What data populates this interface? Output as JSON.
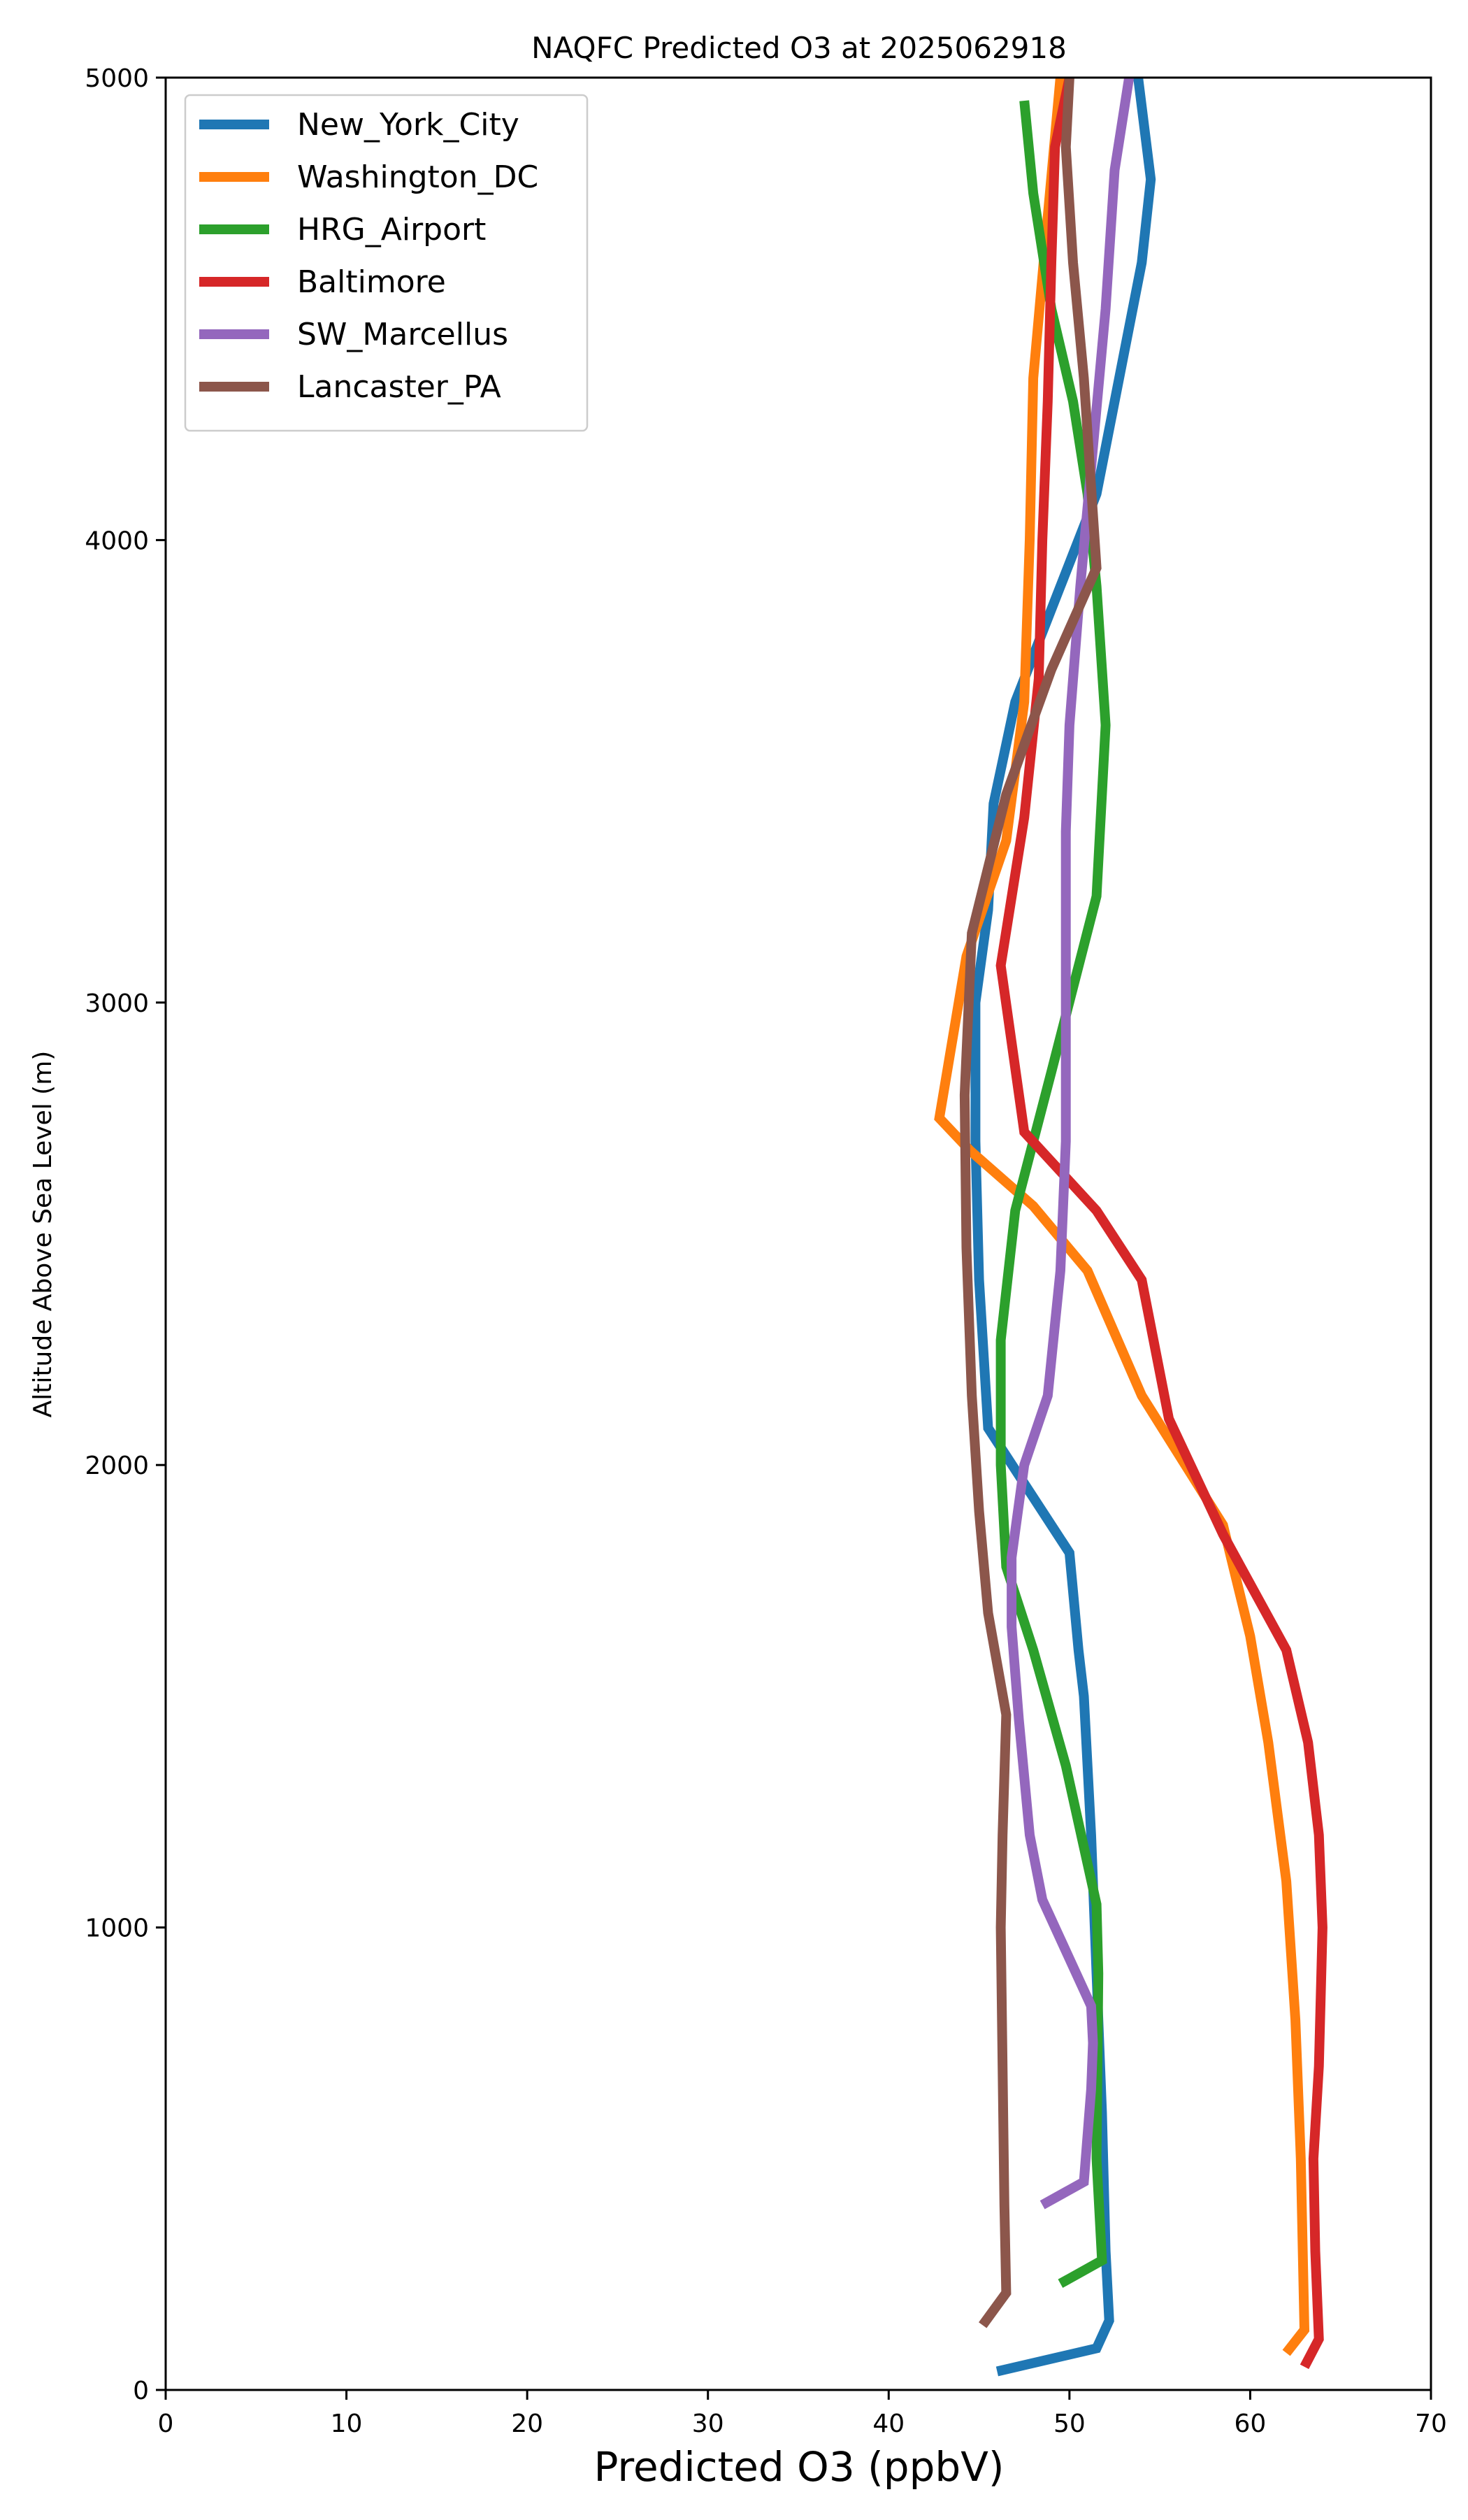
{
  "chart_data": {
    "type": "line",
    "title": "NAQFC Predicted O3 at 2025062918",
    "xlabel": "Predicted O3 (ppbV)",
    "ylabel": "Altitude Above Sea Level (m)",
    "xlim": [
      0,
      70
    ],
    "ylim": [
      0,
      5000
    ],
    "xticks": [
      0,
      10,
      20,
      30,
      40,
      50,
      60,
      70
    ],
    "yticks": [
      0,
      1000,
      2000,
      3000,
      4000,
      5000
    ],
    "grid": false,
    "legend": "upper-left",
    "series": [
      {
        "name": "New_York_City",
        "color": "#1f77b4",
        "points": [
          [
            46.0,
            40
          ],
          [
            51.5,
            90
          ],
          [
            52.2,
            150
          ],
          [
            52.0,
            300
          ],
          [
            51.8,
            600
          ],
          [
            51.5,
            900
          ],
          [
            51.2,
            1200
          ],
          [
            50.8,
            1500
          ],
          [
            50.5,
            1600
          ],
          [
            50.0,
            1810
          ],
          [
            47.5,
            1960
          ],
          [
            45.5,
            2080
          ],
          [
            45.0,
            2400
          ],
          [
            44.8,
            2700
          ],
          [
            44.8,
            3000
          ],
          [
            45.5,
            3200
          ],
          [
            45.8,
            3430
          ],
          [
            47.0,
            3650
          ],
          [
            49.5,
            3900
          ],
          [
            51.5,
            4100
          ],
          [
            52.5,
            4300
          ],
          [
            54.0,
            4600
          ],
          [
            54.5,
            4780
          ],
          [
            53.8,
            5000
          ]
        ]
      },
      {
        "name": "Washington_DC",
        "color": "#ff7f0e",
        "points": [
          [
            62.0,
            80
          ],
          [
            63.0,
            130
          ],
          [
            62.8,
            500
          ],
          [
            62.5,
            800
          ],
          [
            62.0,
            1100
          ],
          [
            61.0,
            1400
          ],
          [
            60.0,
            1630
          ],
          [
            58.5,
            1870
          ],
          [
            54.0,
            2150
          ],
          [
            51.0,
            2420
          ],
          [
            48.0,
            2560
          ],
          [
            44.5,
            2680
          ],
          [
            42.8,
            2750
          ],
          [
            44.3,
            3100
          ],
          [
            46.5,
            3350
          ],
          [
            47.5,
            3650
          ],
          [
            47.8,
            4000
          ],
          [
            48.0,
            4350
          ],
          [
            48.8,
            4700
          ],
          [
            49.5,
            5000
          ]
        ]
      },
      {
        "name": "HRG_Airport",
        "color": "#2ca02c",
        "points": [
          [
            49.5,
            230
          ],
          [
            51.8,
            280
          ],
          [
            51.5,
            500
          ],
          [
            51.6,
            900
          ],
          [
            51.5,
            1050
          ],
          [
            49.8,
            1350
          ],
          [
            48.0,
            1600
          ],
          [
            46.5,
            1780
          ],
          [
            46.2,
            2000
          ],
          [
            46.2,
            2270
          ],
          [
            47.0,
            2550
          ],
          [
            49.0,
            2850
          ],
          [
            51.5,
            3230
          ],
          [
            52.0,
            3600
          ],
          [
            51.5,
            3900
          ],
          [
            51.0,
            4100
          ],
          [
            50.2,
            4300
          ],
          [
            49.0,
            4500
          ],
          [
            48.0,
            4750
          ],
          [
            47.5,
            4950
          ]
        ]
      },
      {
        "name": "Baltimore",
        "color": "#d62728",
        "points": [
          [
            63.0,
            50
          ],
          [
            63.8,
            110
          ],
          [
            63.6,
            300
          ],
          [
            63.5,
            500
          ],
          [
            63.8,
            700
          ],
          [
            64.0,
            1000
          ],
          [
            63.8,
            1200
          ],
          [
            63.2,
            1400
          ],
          [
            62.0,
            1600
          ],
          [
            58.5,
            1850
          ],
          [
            55.5,
            2100
          ],
          [
            54.0,
            2400
          ],
          [
            51.5,
            2550
          ],
          [
            47.5,
            2720
          ],
          [
            46.2,
            3080
          ],
          [
            47.5,
            3400
          ],
          [
            48.3,
            3700
          ],
          [
            48.5,
            4000
          ],
          [
            48.8,
            4300
          ],
          [
            49.0,
            4600
          ],
          [
            49.2,
            4850
          ],
          [
            50.0,
            5000
          ]
        ]
      },
      {
        "name": "SW_Marcellus",
        "color": "#9467bd",
        "points": [
          [
            48.5,
            400
          ],
          [
            50.8,
            450
          ],
          [
            51.2,
            650
          ],
          [
            51.3,
            750
          ],
          [
            51.2,
            830
          ],
          [
            48.5,
            1060
          ],
          [
            47.8,
            1200
          ],
          [
            47.2,
            1450
          ],
          [
            46.8,
            1650
          ],
          [
            46.8,
            1800
          ],
          [
            47.5,
            2000
          ],
          [
            48.8,
            2150
          ],
          [
            49.5,
            2420
          ],
          [
            49.8,
            2700
          ],
          [
            49.8,
            3000
          ],
          [
            49.8,
            3370
          ],
          [
            50.0,
            3600
          ],
          [
            50.6,
            3900
          ],
          [
            51.3,
            4200
          ],
          [
            52.0,
            4500
          ],
          [
            52.5,
            4800
          ],
          [
            53.3,
            5000
          ]
        ]
      },
      {
        "name": "Lancaster_PA",
        "color": "#8c564b",
        "points": [
          [
            45.2,
            140
          ],
          [
            46.5,
            210
          ],
          [
            46.4,
            400
          ],
          [
            46.3,
            700
          ],
          [
            46.2,
            1000
          ],
          [
            46.3,
            1200
          ],
          [
            46.5,
            1460
          ],
          [
            45.5,
            1680
          ],
          [
            45.0,
            1900
          ],
          [
            44.6,
            2150
          ],
          [
            44.3,
            2470
          ],
          [
            44.2,
            2800
          ],
          [
            44.6,
            3150
          ],
          [
            46.5,
            3450
          ],
          [
            49.0,
            3720
          ],
          [
            51.5,
            3940
          ],
          [
            50.8,
            4350
          ],
          [
            50.2,
            4600
          ],
          [
            49.8,
            4850
          ],
          [
            50.0,
            5000
          ]
        ]
      }
    ]
  }
}
